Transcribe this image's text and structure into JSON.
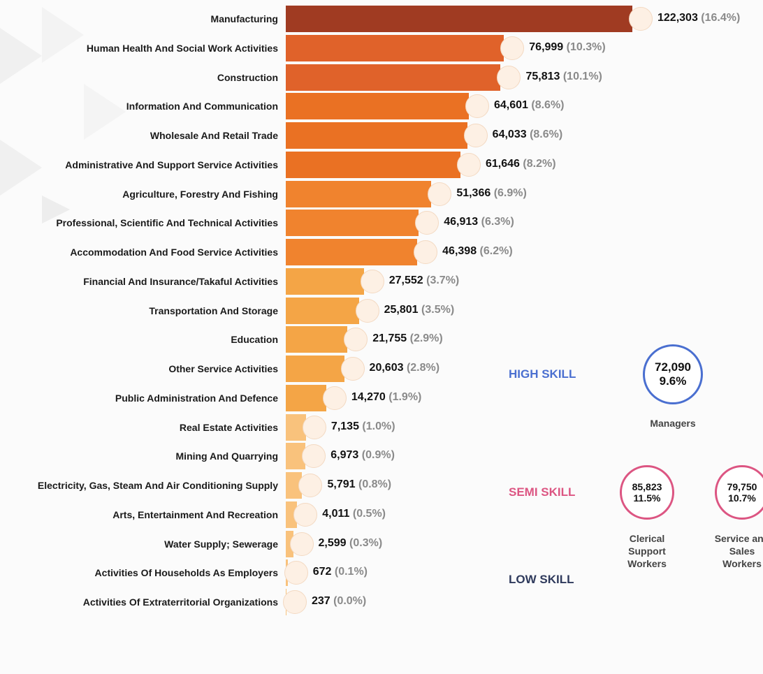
{
  "chart_data": {
    "type": "bar",
    "orientation": "horizontal",
    "categories": [
      "Manufacturing",
      "Human Health And Social Work Activities",
      "Construction",
      "Information And Communication",
      "Wholesale And Retail Trade",
      "Administrative And Support Service Activities",
      "Agriculture, Forestry And Fishing",
      "Professional, Scientific And Technical Activities",
      "Accommodation And Food Service Activities",
      "Financial And Insurance/Takaful Activities",
      "Transportation And Storage",
      "Education",
      "Other Service Activities",
      "Public Administration And Defence",
      "Real Estate Activities",
      "Mining And Quarrying",
      "Electricity, Gas, Steam And Air Conditioning Supply",
      "Arts, Entertainment And Recreation",
      "Water Supply; Sewerage",
      "Activities Of Households As Employers",
      "Activities Of Extraterritorial Organizations"
    ],
    "values": [
      122303,
      76999,
      75813,
      64601,
      64033,
      61646,
      51366,
      46913,
      46398,
      27552,
      25801,
      21755,
      20603,
      14270,
      7135,
      6973,
      5791,
      4011,
      2599,
      672,
      237
    ],
    "value_labels": [
      "122,303",
      "76,999",
      "75,813",
      "64,601",
      "64,033",
      "61,646",
      "51,366",
      "46,913",
      "46,398",
      "27,552",
      "25,801",
      "21,755",
      "20,603",
      "14,270",
      "7,135",
      "6,973",
      "5,791",
      "4,011",
      "2,599",
      "672",
      "237"
    ],
    "share_labels": [
      "(16.4%)",
      "(10.3%)",
      "(10.1%)",
      "(8.6%)",
      "(8.6%)",
      "(8.2%)",
      "(6.9%)",
      "(6.3%)",
      "(6.2%)",
      "(3.7%)",
      "(3.5%)",
      "(2.9%)",
      "(2.8%)",
      "(1.9%)",
      "(1.0%)",
      "(0.9%)",
      "(0.8%)",
      "(0.5%)",
      "(0.3%)",
      "(0.1%)",
      "(0.0%)"
    ],
    "colors": [
      "#a03b22",
      "#e0622a",
      "#e0622a",
      "#ea7123",
      "#ea7123",
      "#ea7123",
      "#f0832e",
      "#f0832e",
      "#f0832e",
      "#f4a546",
      "#f4a546",
      "#f4a546",
      "#f4a546",
      "#f4a546",
      "#f9c27c",
      "#f9c27c",
      "#f9c27c",
      "#f9c27c",
      "#f9c27c",
      "#f9c27c",
      "#f9c27c"
    ]
  },
  "skill_panel": [
    {
      "label": "HIGH SKILL",
      "color": "#4a6fd0",
      "groups": [
        {
          "value": "72,090",
          "share": "9.6%",
          "name": "Managers"
        }
      ]
    },
    {
      "label": "SEMI SKILL",
      "color": "#dc5582",
      "groups": [
        {
          "value": "85,823",
          "share": "11.5%",
          "name": "Clerical Support Workers"
        },
        {
          "value": "79,750",
          "share": "10.7%",
          "name": "Service and Sales Workers"
        }
      ]
    },
    {
      "label": "LOW SKILL",
      "color": "#2f3a5c",
      "groups": []
    }
  ]
}
